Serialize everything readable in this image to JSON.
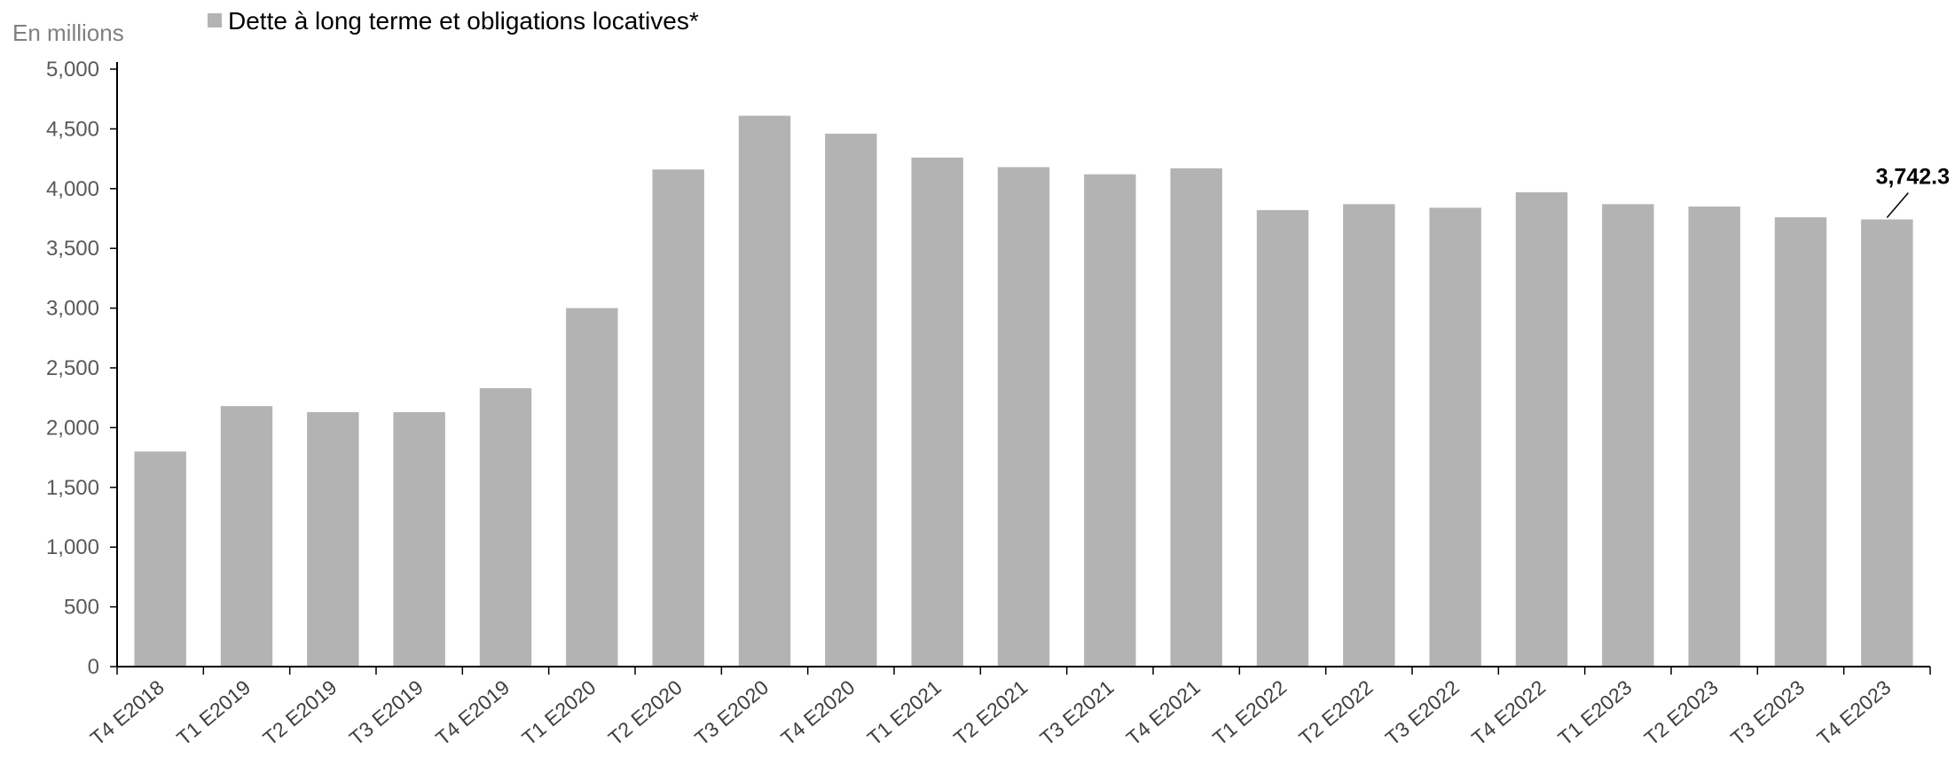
{
  "chart_data": {
    "type": "bar",
    "unit_label": "En millions",
    "legend": {
      "placement": "top-left",
      "entries": [
        {
          "name": "Dette à long terme et obligations locatives*",
          "color": "#b3b3b3"
        }
      ]
    },
    "categories": [
      "T4 E2018",
      "T1 E2019",
      "T2 E2019",
      "T3 E2019",
      "T4 E2019",
      "T1 E2020",
      "T2 E2020",
      "T3 E2020",
      "T4 E2020",
      "T1 E2021",
      "T2 E2021",
      "T3 E2021",
      "T4 E2021",
      "T1 E2022",
      "T2 E2022",
      "T3 E2022",
      "T4 E2022",
      "T1 E2023",
      "T2 E2023",
      "T3 E2023",
      "T4 E2023"
    ],
    "series": [
      {
        "name": "Dette à long terme et obligations locatives*",
        "color": "#b3b3b3",
        "values": [
          1800,
          2180,
          2130,
          2130,
          2330,
          3000,
          4160,
          4610,
          4460,
          4260,
          4180,
          4120,
          4170,
          3820,
          3870,
          3840,
          3970,
          3870,
          3850,
          3760,
          3742.3
        ]
      }
    ],
    "ylim": [
      0,
      5000
    ],
    "yticks": [
      0,
      500,
      1000,
      1500,
      2000,
      2500,
      3000,
      3500,
      4000,
      4500,
      5000
    ],
    "ytick_labels": [
      "0",
      "500",
      "1,000",
      "1,500",
      "2,000",
      "2,500",
      "3,000",
      "3,500",
      "4,000",
      "4,500",
      "5,000"
    ],
    "annotations": [
      {
        "category": "T4 E2023",
        "text": "3,742.3"
      }
    ],
    "grid": false,
    "axis_color": "#000000"
  }
}
